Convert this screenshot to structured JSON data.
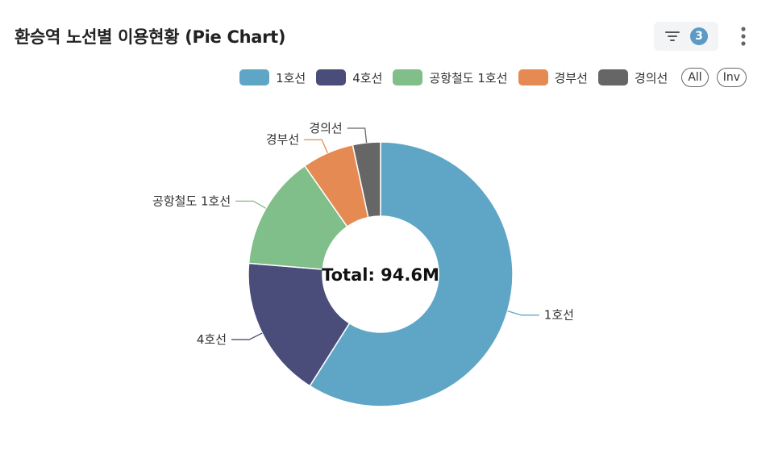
{
  "header": {
    "title": "환승역 노선별 이용현황 (Pie Chart)",
    "filter_count": "3"
  },
  "legend": {
    "all_label": "All",
    "inv_label": "Inv"
  },
  "chart_data": {
    "type": "pie",
    "donut": true,
    "title": "환승역 노선별 이용현황 (Pie Chart)",
    "center_label": "Total: 94.6M",
    "legend_position": "top-right",
    "categories": [
      "1호선",
      "4호선",
      "공항철도 1호선",
      "경부선",
      "경의선"
    ],
    "values": [
      55.8,
      16.4,
      13.2,
      6.0,
      3.2
    ],
    "colors": [
      "#5fa6c6",
      "#4a4c79",
      "#80be8a",
      "#e58a52",
      "#666666"
    ]
  }
}
